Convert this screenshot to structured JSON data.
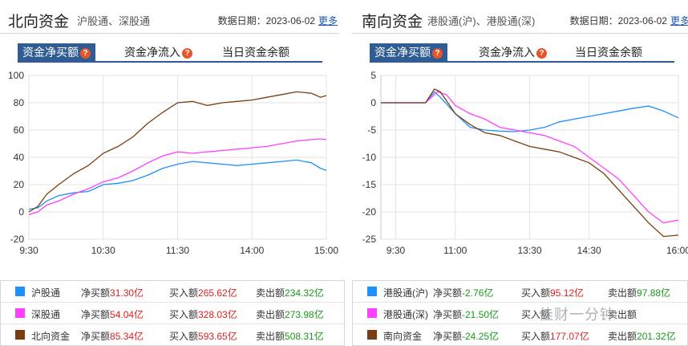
{
  "north": {
    "title": "北向资金",
    "subtitle": "沪股通、深股通",
    "date_label": "数据日期：2023-06-02",
    "more": "更多",
    "tabs": [
      "资金净买额",
      "资金净流入",
      "当日资金余额"
    ],
    "legend": [
      {
        "name": "沪股通",
        "net_label": "净买额",
        "net": "31.30亿",
        "buy_label": "买入额",
        "buy": "265.62亿",
        "sell_label": "卖出额",
        "sell": "234.32亿"
      },
      {
        "name": "深股通",
        "net_label": "净买额",
        "net": "54.04亿",
        "buy_label": "买入额",
        "buy": "328.03亿",
        "sell_label": "卖出额",
        "sell": "273.98亿"
      },
      {
        "name": "北向资金",
        "net_label": "净买额",
        "net": "85.34亿",
        "buy_label": "买入额",
        "buy": "593.65亿",
        "sell_label": "卖出额",
        "sell": "508.31亿"
      }
    ]
  },
  "south": {
    "title": "南向资金",
    "subtitle": "港股通(沪)、港股通(深)",
    "date_label": "数据日期：2023-06-02",
    "more": "更多",
    "tabs": [
      "资金净买额",
      "资金净流入",
      "当日资金余额"
    ],
    "legend": [
      {
        "name": "港股通(沪)",
        "net_label": "净买额",
        "net": "-2.76亿",
        "buy_label": "买入额",
        "buy": "95.12亿",
        "sell_label": "卖出额",
        "sell": "97.88亿"
      },
      {
        "name": "港股通(深)",
        "net_label": "净买额",
        "net": "-21.50亿",
        "buy_label": "买入额",
        "buy": "",
        "sell_label": "卖出额",
        "sell": ""
      },
      {
        "name": "南向资金",
        "net_label": "净买额",
        "net": "-24.25亿",
        "buy_label": "买入额",
        "buy": "177.07亿",
        "sell_label": "卖出额",
        "sell": "201.32亿"
      }
    ]
  },
  "watermark": "佳财一分钟",
  "chart_data": [
    {
      "type": "line",
      "ylim": [
        -20,
        100
      ],
      "y_ticks": [
        -20,
        0,
        20,
        40,
        60,
        80,
        100
      ],
      "x_ticks": [
        "9:30",
        "10:30",
        "11:30",
        "14:00",
        "15:00"
      ],
      "x_tick_pos": [
        0,
        0.25,
        0.5,
        0.75,
        1
      ],
      "grid": true,
      "series": [
        {
          "name": "沪股通",
          "color": "#1e90ff",
          "points": [
            [
              0,
              2
            ],
            [
              0.03,
              3
            ],
            [
              0.06,
              8
            ],
            [
              0.1,
              12
            ],
            [
              0.15,
              14
            ],
            [
              0.2,
              15
            ],
            [
              0.25,
              20
            ],
            [
              0.3,
              21
            ],
            [
              0.35,
              23
            ],
            [
              0.4,
              27
            ],
            [
              0.45,
              32
            ],
            [
              0.5,
              35
            ],
            [
              0.55,
              37
            ],
            [
              0.6,
              36
            ],
            [
              0.65,
              35
            ],
            [
              0.7,
              34
            ],
            [
              0.75,
              35
            ],
            [
              0.8,
              36
            ],
            [
              0.85,
              37
            ],
            [
              0.9,
              38
            ],
            [
              0.95,
              36
            ],
            [
              0.98,
              32
            ],
            [
              1,
              30.5
            ]
          ]
        },
        {
          "name": "深股通",
          "color": "#ff40ff",
          "points": [
            [
              0,
              -2
            ],
            [
              0.03,
              0
            ],
            [
              0.06,
              5
            ],
            [
              0.1,
              8
            ],
            [
              0.15,
              13
            ],
            [
              0.2,
              17
            ],
            [
              0.25,
              22
            ],
            [
              0.3,
              25
            ],
            [
              0.35,
              30
            ],
            [
              0.4,
              36
            ],
            [
              0.45,
              41
            ],
            [
              0.5,
              44
            ],
            [
              0.55,
              43
            ],
            [
              0.6,
              44
            ],
            [
              0.65,
              45
            ],
            [
              0.7,
              46
            ],
            [
              0.75,
              47
            ],
            [
              0.8,
              48
            ],
            [
              0.85,
              50
            ],
            [
              0.9,
              52
            ],
            [
              0.95,
              53
            ],
            [
              0.98,
              53.5
            ],
            [
              1,
              53
            ]
          ]
        },
        {
          "name": "北向资金",
          "color": "#7a3e10",
          "points": [
            [
              0,
              0
            ],
            [
              0.03,
              4
            ],
            [
              0.06,
              13
            ],
            [
              0.1,
              20
            ],
            [
              0.15,
              28
            ],
            [
              0.2,
              34
            ],
            [
              0.25,
              43
            ],
            [
              0.3,
              48
            ],
            [
              0.35,
              55
            ],
            [
              0.4,
              65
            ],
            [
              0.45,
              73
            ],
            [
              0.5,
              80
            ],
            [
              0.55,
              81
            ],
            [
              0.6,
              78
            ],
            [
              0.65,
              80
            ],
            [
              0.7,
              81
            ],
            [
              0.75,
              82
            ],
            [
              0.8,
              84
            ],
            [
              0.85,
              86
            ],
            [
              0.9,
              88
            ],
            [
              0.95,
              87
            ],
            [
              0.98,
              84
            ],
            [
              1,
              85.3
            ]
          ]
        }
      ]
    },
    {
      "type": "line",
      "ylim": [
        -25,
        5
      ],
      "y_ticks": [
        -25,
        -20,
        -15,
        -10,
        -5,
        0,
        5
      ],
      "x_ticks": [
        "9:30",
        "11:00",
        "13:30",
        "14:30",
        "16:00"
      ],
      "x_tick_pos": [
        0.05,
        0.25,
        0.5,
        0.7,
        1
      ],
      "grid": true,
      "series": [
        {
          "name": "港股通(沪)",
          "color": "#1e90ff",
          "points": [
            [
              0,
              0
            ],
            [
              0.15,
              0
            ],
            [
              0.18,
              2
            ],
            [
              0.2,
              1
            ],
            [
              0.25,
              -2
            ],
            [
              0.3,
              -4.5
            ],
            [
              0.35,
              -5
            ],
            [
              0.4,
              -5.2
            ],
            [
              0.45,
              -5.3
            ],
            [
              0.5,
              -5
            ],
            [
              0.55,
              -4.5
            ],
            [
              0.6,
              -3.5
            ],
            [
              0.65,
              -3
            ],
            [
              0.7,
              -2.5
            ],
            [
              0.75,
              -2
            ],
            [
              0.8,
              -1.5
            ],
            [
              0.85,
              -1
            ],
            [
              0.9,
              -0.6
            ],
            [
              0.95,
              -1.5
            ],
            [
              1,
              -2.76
            ]
          ]
        },
        {
          "name": "港股通(深)",
          "color": "#ff40ff",
          "points": [
            [
              0,
              0
            ],
            [
              0.15,
              0
            ],
            [
              0.19,
              2
            ],
            [
              0.22,
              1.5
            ],
            [
              0.25,
              -0.5
            ],
            [
              0.3,
              -2
            ],
            [
              0.35,
              -3
            ],
            [
              0.4,
              -4.5
            ],
            [
              0.45,
              -5
            ],
            [
              0.5,
              -5.5
            ],
            [
              0.55,
              -6
            ],
            [
              0.6,
              -7
            ],
            [
              0.65,
              -8
            ],
            [
              0.7,
              -10
            ],
            [
              0.75,
              -12
            ],
            [
              0.8,
              -14
            ],
            [
              0.85,
              -17
            ],
            [
              0.9,
              -20
            ],
            [
              0.95,
              -22
            ],
            [
              1,
              -21.5
            ]
          ]
        },
        {
          "name": "南向资金",
          "color": "#7a3e10",
          "points": [
            [
              0,
              0
            ],
            [
              0.15,
              0
            ],
            [
              0.18,
              2.5
            ],
            [
              0.2,
              2
            ],
            [
              0.25,
              -2
            ],
            [
              0.3,
              -4
            ],
            [
              0.35,
              -5.5
            ],
            [
              0.4,
              -6
            ],
            [
              0.45,
              -7
            ],
            [
              0.5,
              -8
            ],
            [
              0.55,
              -8.5
            ],
            [
              0.6,
              -9
            ],
            [
              0.65,
              -10
            ],
            [
              0.7,
              -11
            ],
            [
              0.75,
              -13
            ],
            [
              0.8,
              -16
            ],
            [
              0.85,
              -19
            ],
            [
              0.9,
              -22
            ],
            [
              0.95,
              -24.5
            ],
            [
              1,
              -24.25
            ]
          ]
        }
      ]
    }
  ]
}
